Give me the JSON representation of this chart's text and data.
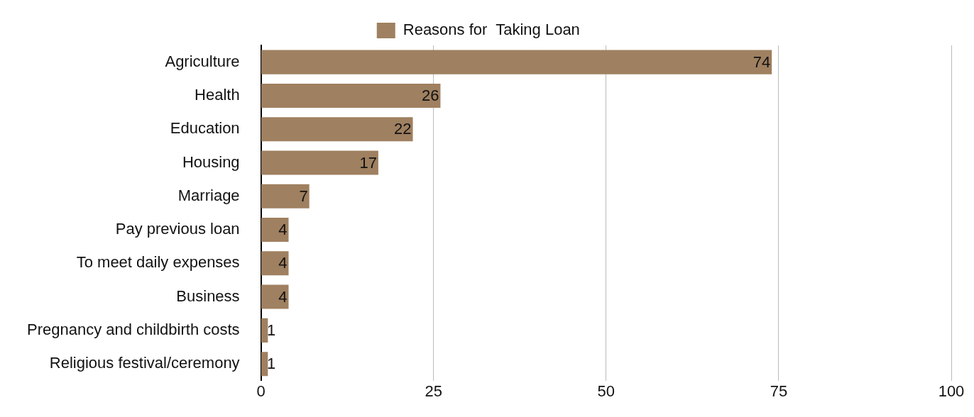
{
  "chart_data": {
    "type": "bar",
    "orientation": "horizontal",
    "categories": [
      "Agriculture",
      "Health",
      "Education",
      "Housing",
      "Marriage",
      "Pay previous loan",
      "To meet daily expenses",
      "Business",
      "Pregnancy and childbirth costs",
      "Religious festival/ceremony"
    ],
    "series": [
      {
        "name": "Reasons for  Taking Loan",
        "color": "#9f8060",
        "values": [
          74,
          26,
          22,
          17,
          7,
          4,
          4,
          4,
          1,
          1
        ]
      }
    ],
    "xlim": [
      0,
      100
    ],
    "xticks": [
      0,
      25,
      50,
      75,
      100
    ],
    "grid": "x",
    "legend": "top",
    "data_labels": true
  }
}
